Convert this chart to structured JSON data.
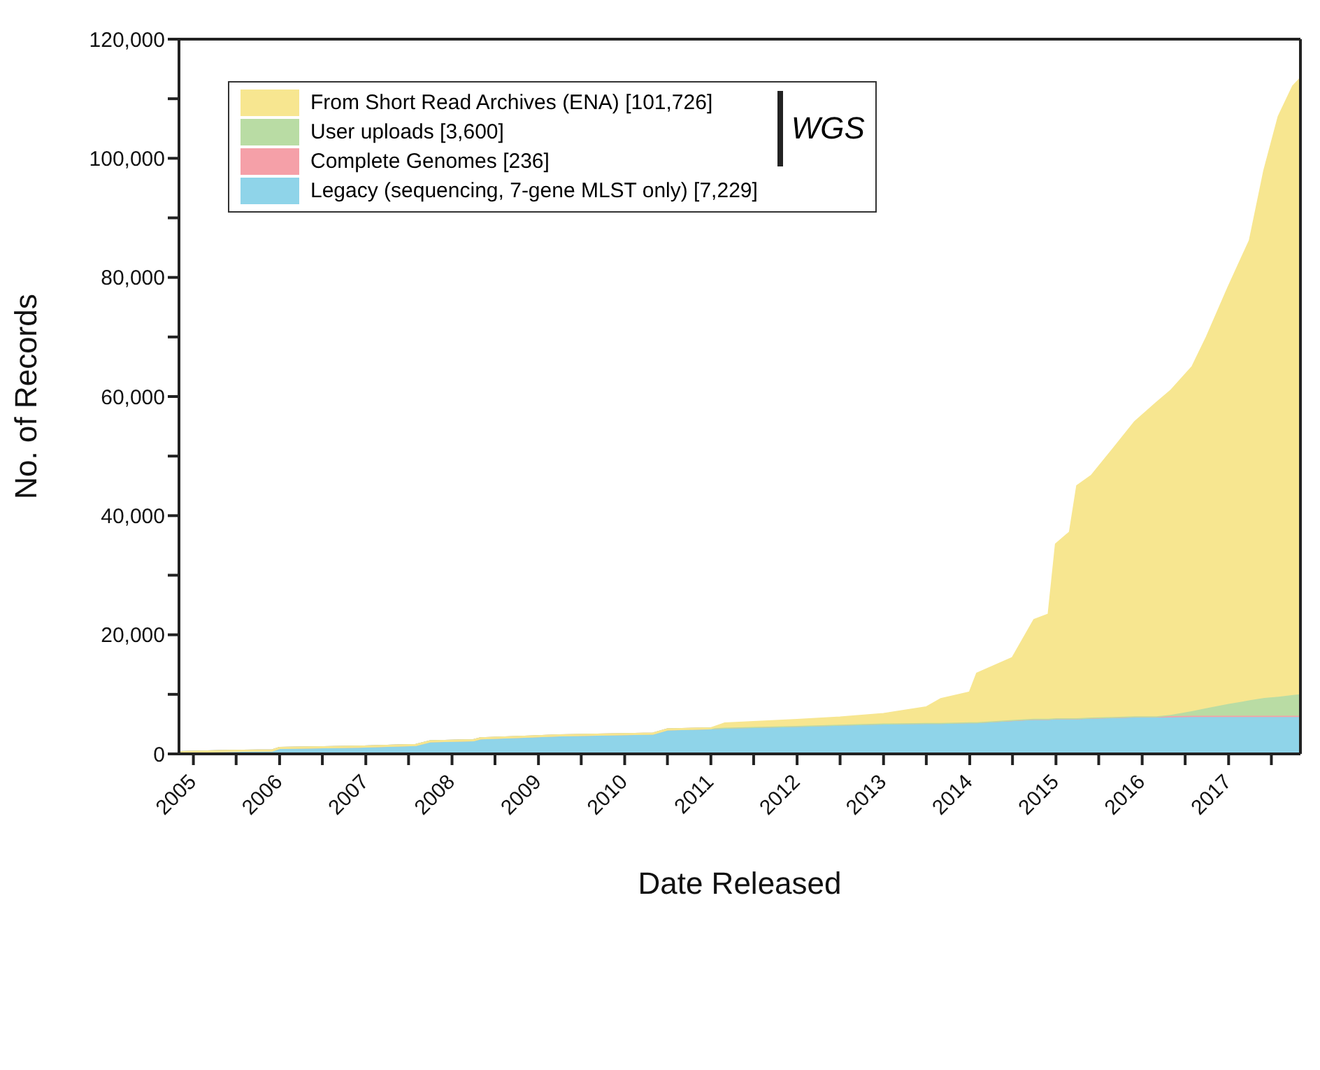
{
  "chart_data": {
    "type": "area",
    "stacked": true,
    "xlabel": "Date Released",
    "ylabel": "No. of Records",
    "legend": "top left",
    "annotations": [
      "WGS"
    ],
    "x": [
      "2004-11",
      "2005-06",
      "2005-12",
      "2006-01",
      "2006-12",
      "2007-08",
      "2007-10",
      "2008-04",
      "2008-05",
      "2008-09",
      "2009-04",
      "2010-05",
      "2010-07",
      "2011-01",
      "2011-03",
      "2012-01",
      "2012-07",
      "2013-01",
      "2013-07",
      "2013-09",
      "2014-01",
      "2014-02",
      "2014-07",
      "2014-10",
      "2014-12",
      "2015-01",
      "2015-03",
      "2015-04",
      "2015-06",
      "2015-09",
      "2015-12",
      "2016-03",
      "2016-05",
      "2016-08",
      "2016-10",
      "2017-01",
      "2017-04",
      "2017-06",
      "2017-08",
      "2017-10",
      "2017-11"
    ],
    "xlim": [
      "2004-11",
      "2017-11"
    ],
    "xticks": [
      {
        "value": "2005",
        "label": "2005"
      },
      {
        "value": "2005-07",
        "label": null
      },
      {
        "value": "2006",
        "label": "2006"
      },
      {
        "value": "2006-07",
        "label": null
      },
      {
        "value": "2007",
        "label": "2007"
      },
      {
        "value": "2007-07",
        "label": null
      },
      {
        "value": "2008",
        "label": "2008"
      },
      {
        "value": "2008-07",
        "label": null
      },
      {
        "value": "2009",
        "label": "2009"
      },
      {
        "value": "2009-07",
        "label": null
      },
      {
        "value": "2010",
        "label": "2010"
      },
      {
        "value": "2010-07",
        "label": null
      },
      {
        "value": "2011",
        "label": "2011"
      },
      {
        "value": "2011-07",
        "label": null
      },
      {
        "value": "2012",
        "label": "2012"
      },
      {
        "value": "2012-07",
        "label": null
      },
      {
        "value": "2013",
        "label": "2013"
      },
      {
        "value": "2013-07",
        "label": null
      },
      {
        "value": "2014",
        "label": "2014"
      },
      {
        "value": "2014-07",
        "label": null
      },
      {
        "value": "2015",
        "label": "2015"
      },
      {
        "value": "2015-07",
        "label": null
      },
      {
        "value": "2016",
        "label": "2016"
      },
      {
        "value": "2016-07",
        "label": null
      },
      {
        "value": "2017",
        "label": "2017"
      },
      {
        "value": "2017-07",
        "label": null
      }
    ],
    "ylim": [
      0,
      120000
    ],
    "yticks": [
      {
        "value": 0,
        "label": "0"
      },
      {
        "value": 10000,
        "label": null
      },
      {
        "value": 20000,
        "label": "20,000"
      },
      {
        "value": 30000,
        "label": null
      },
      {
        "value": 40000,
        "label": "40,000"
      },
      {
        "value": 50000,
        "label": null
      },
      {
        "value": 60000,
        "label": "60,000"
      },
      {
        "value": 70000,
        "label": null
      },
      {
        "value": 80000,
        "label": "80,000"
      },
      {
        "value": 90000,
        "label": null
      },
      {
        "value": 100000,
        "label": "100,000"
      },
      {
        "value": 110000,
        "label": null
      },
      {
        "value": 120000,
        "label": "120,000"
      }
    ],
    "series": [
      {
        "name": "Legacy (sequencing, 7-gene MLST only) [7,229]",
        "color": "#8fd4e9",
        "values": [
          300,
          500,
          600,
          1000,
          1200,
          1500,
          2100,
          2300,
          2600,
          2700,
          3000,
          3300,
          4000,
          4200,
          4300,
          4600,
          4800,
          5000,
          5100,
          5100,
          5200,
          5200,
          5500,
          5700,
          5700,
          5800,
          5800,
          5800,
          5900,
          6000,
          6100,
          6100,
          6150,
          6200,
          6200,
          6200,
          6200,
          6200,
          6200,
          6200,
          6200
        ]
      },
      {
        "name": "Complete Genomes [236]",
        "color": "#f5a0a8",
        "values": [
          0,
          0,
          0,
          0,
          0,
          0,
          0,
          0,
          0,
          100,
          100,
          100,
          100,
          100,
          100,
          100,
          100,
          100,
          100,
          100,
          100,
          100,
          200,
          200,
          200,
          200,
          200,
          200,
          200,
          200,
          200,
          200,
          200,
          200,
          200,
          200,
          200,
          200,
          200,
          200,
          200
        ]
      },
      {
        "name": "User uploads [3,600]",
        "color": "#b9dca4",
        "values": [
          0,
          0,
          0,
          0,
          0,
          0,
          0,
          0,
          0,
          0,
          0,
          0,
          0,
          0,
          0,
          0,
          0,
          0,
          0,
          0,
          0,
          0,
          0,
          0,
          0,
          0,
          0,
          0,
          0,
          0,
          0,
          0,
          200,
          800,
          1300,
          2000,
          2600,
          3000,
          3200,
          3500,
          3600
        ]
      },
      {
        "name": "From Short Read Archives (ENA) [101,726]",
        "color": "#f7e690",
        "values": [
          0,
          0,
          0,
          0,
          0,
          0,
          0,
          0,
          0,
          0,
          0,
          0,
          0,
          0,
          700,
          1000,
          1200,
          1600,
          2600,
          4000,
          5000,
          8200,
          10400,
          16600,
          17500,
          29200,
          31200,
          39000,
          40600,
          45000,
          49400,
          52600,
          54400,
          57800,
          62300,
          70000,
          77200,
          88500,
          97400,
          102200,
          103400
        ]
      }
    ]
  }
}
